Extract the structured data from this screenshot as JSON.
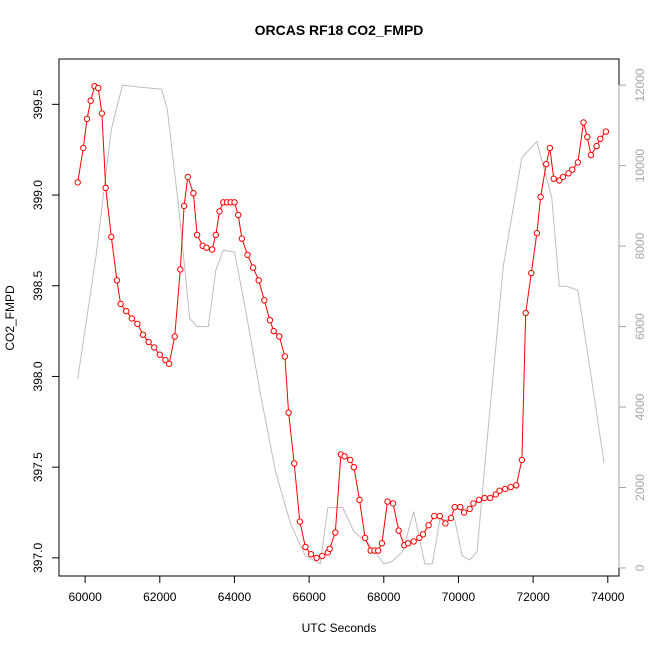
{
  "chart_data": {
    "type": "line",
    "title": "ORCAS RF18 CO2_FMPD",
    "xlabel": "UTC Seconds",
    "ylabel": "CO2_FMPD",
    "xlim": [
      59300,
      74300
    ],
    "ylim": [
      396.9,
      399.75
    ],
    "y2lim": [
      -200,
      12650
    ],
    "x_ticks": [
      60000,
      62000,
      64000,
      66000,
      68000,
      70000,
      72000,
      74000
    ],
    "y_ticks": [
      397.0,
      397.5,
      398.0,
      398.5,
      399.0,
      399.5
    ],
    "y2_ticks": [
      0,
      2000,
      4000,
      6000,
      8000,
      10000,
      12000
    ],
    "grid": false,
    "colors": {
      "co2": "#ff0000",
      "altitude": "#bebebe"
    },
    "series": [
      {
        "axis": "left",
        "style": "line+markers",
        "x": [
          59800,
          59950,
          60050,
          60150,
          60250,
          60350,
          60450,
          60550,
          60700,
          60850,
          60950,
          61100,
          61250,
          61400,
          61550,
          61700,
          61850,
          62000,
          62150,
          62250,
          62400,
          62550,
          62650,
          62750,
          62900,
          63000,
          63150,
          63250,
          63400,
          63500,
          63600,
          63700,
          63800,
          63900,
          64000,
          64100,
          64200,
          64350,
          64500,
          64650,
          64800,
          64950,
          65050,
          65200,
          65350,
          65450,
          65600,
          65750,
          65900,
          66050,
          66200,
          66350,
          66500,
          66550,
          66700,
          66850,
          66950,
          67100,
          67200,
          67350,
          67500,
          67650,
          67750,
          67850,
          67950,
          68100,
          68250,
          68400,
          68550,
          68650,
          68800,
          68950,
          69050,
          69200,
          69350,
          69500,
          69650,
          69800,
          69900,
          70050,
          70150,
          70300,
          70400,
          70550,
          70700,
          70850,
          71000,
          71100,
          71250,
          71400,
          71550,
          71700,
          71800,
          71950,
          72100,
          72200,
          72350,
          72450,
          72550,
          72700,
          72800,
          72950,
          73050,
          73200,
          73350,
          73450,
          73550,
          73700,
          73800,
          73950
        ],
        "y": [
          399.07,
          399.26,
          399.42,
          399.52,
          399.6,
          399.59,
          399.45,
          399.04,
          398.77,
          398.53,
          398.4,
          398.36,
          398.32,
          398.29,
          398.23,
          398.19,
          398.16,
          398.12,
          398.09,
          398.07,
          398.22,
          398.59,
          398.94,
          399.1,
          399.01,
          398.78,
          398.72,
          398.71,
          398.7,
          398.78,
          398.91,
          398.96,
          398.96,
          398.96,
          398.96,
          398.89,
          398.76,
          398.67,
          398.6,
          398.53,
          398.42,
          398.31,
          398.25,
          398.22,
          398.11,
          397.8,
          397.52,
          397.2,
          397.06,
          397.02,
          397.0,
          397.01,
          397.03,
          397.05,
          397.14,
          397.57,
          397.56,
          397.54,
          397.5,
          397.32,
          397.11,
          397.04,
          397.04,
          397.04,
          397.08,
          397.31,
          397.3,
          397.15,
          397.07,
          397.08,
          397.09,
          397.11,
          397.13,
          397.18,
          397.23,
          397.23,
          397.19,
          397.22,
          397.28,
          397.28,
          397.25,
          397.27,
          397.3,
          397.32,
          397.33,
          397.33,
          397.35,
          397.37,
          397.38,
          397.39,
          397.4,
          397.54,
          398.35,
          398.57,
          398.79,
          398.99,
          399.17,
          399.26,
          399.09,
          399.08,
          399.1,
          399.12,
          399.14,
          399.18,
          399.4,
          399.32,
          399.22,
          399.27,
          399.31,
          399.35
        ]
      },
      {
        "axis": "right",
        "style": "line",
        "x": [
          59800,
          60300,
          60700,
          61000,
          61500,
          62050,
          62200,
          62500,
          62800,
          63000,
          63300,
          63500,
          63700,
          64000,
          64300,
          64700,
          65100,
          65500,
          65900,
          66300,
          66500,
          66900,
          67200,
          67600,
          68000,
          68200,
          68500,
          68800,
          69100,
          69300,
          69500,
          69900,
          70100,
          70300,
          70500,
          70700,
          71200,
          71700,
          72100,
          72500,
          72700,
          72900,
          73200,
          73500,
          73900
        ],
        "y": [
          4700,
          7800,
          10900,
          12000,
          11950,
          11900,
          11400,
          9000,
          6200,
          6000,
          6000,
          7400,
          7900,
          7850,
          6400,
          4300,
          2400,
          1100,
          300,
          100,
          1500,
          1500,
          900,
          600,
          100,
          150,
          400,
          1400,
          100,
          100,
          1200,
          1200,
          300,
          200,
          400,
          2500,
          7500,
          10200,
          10600,
          9200,
          7000,
          7000,
          6900,
          5100,
          2600
        ]
      }
    ]
  }
}
